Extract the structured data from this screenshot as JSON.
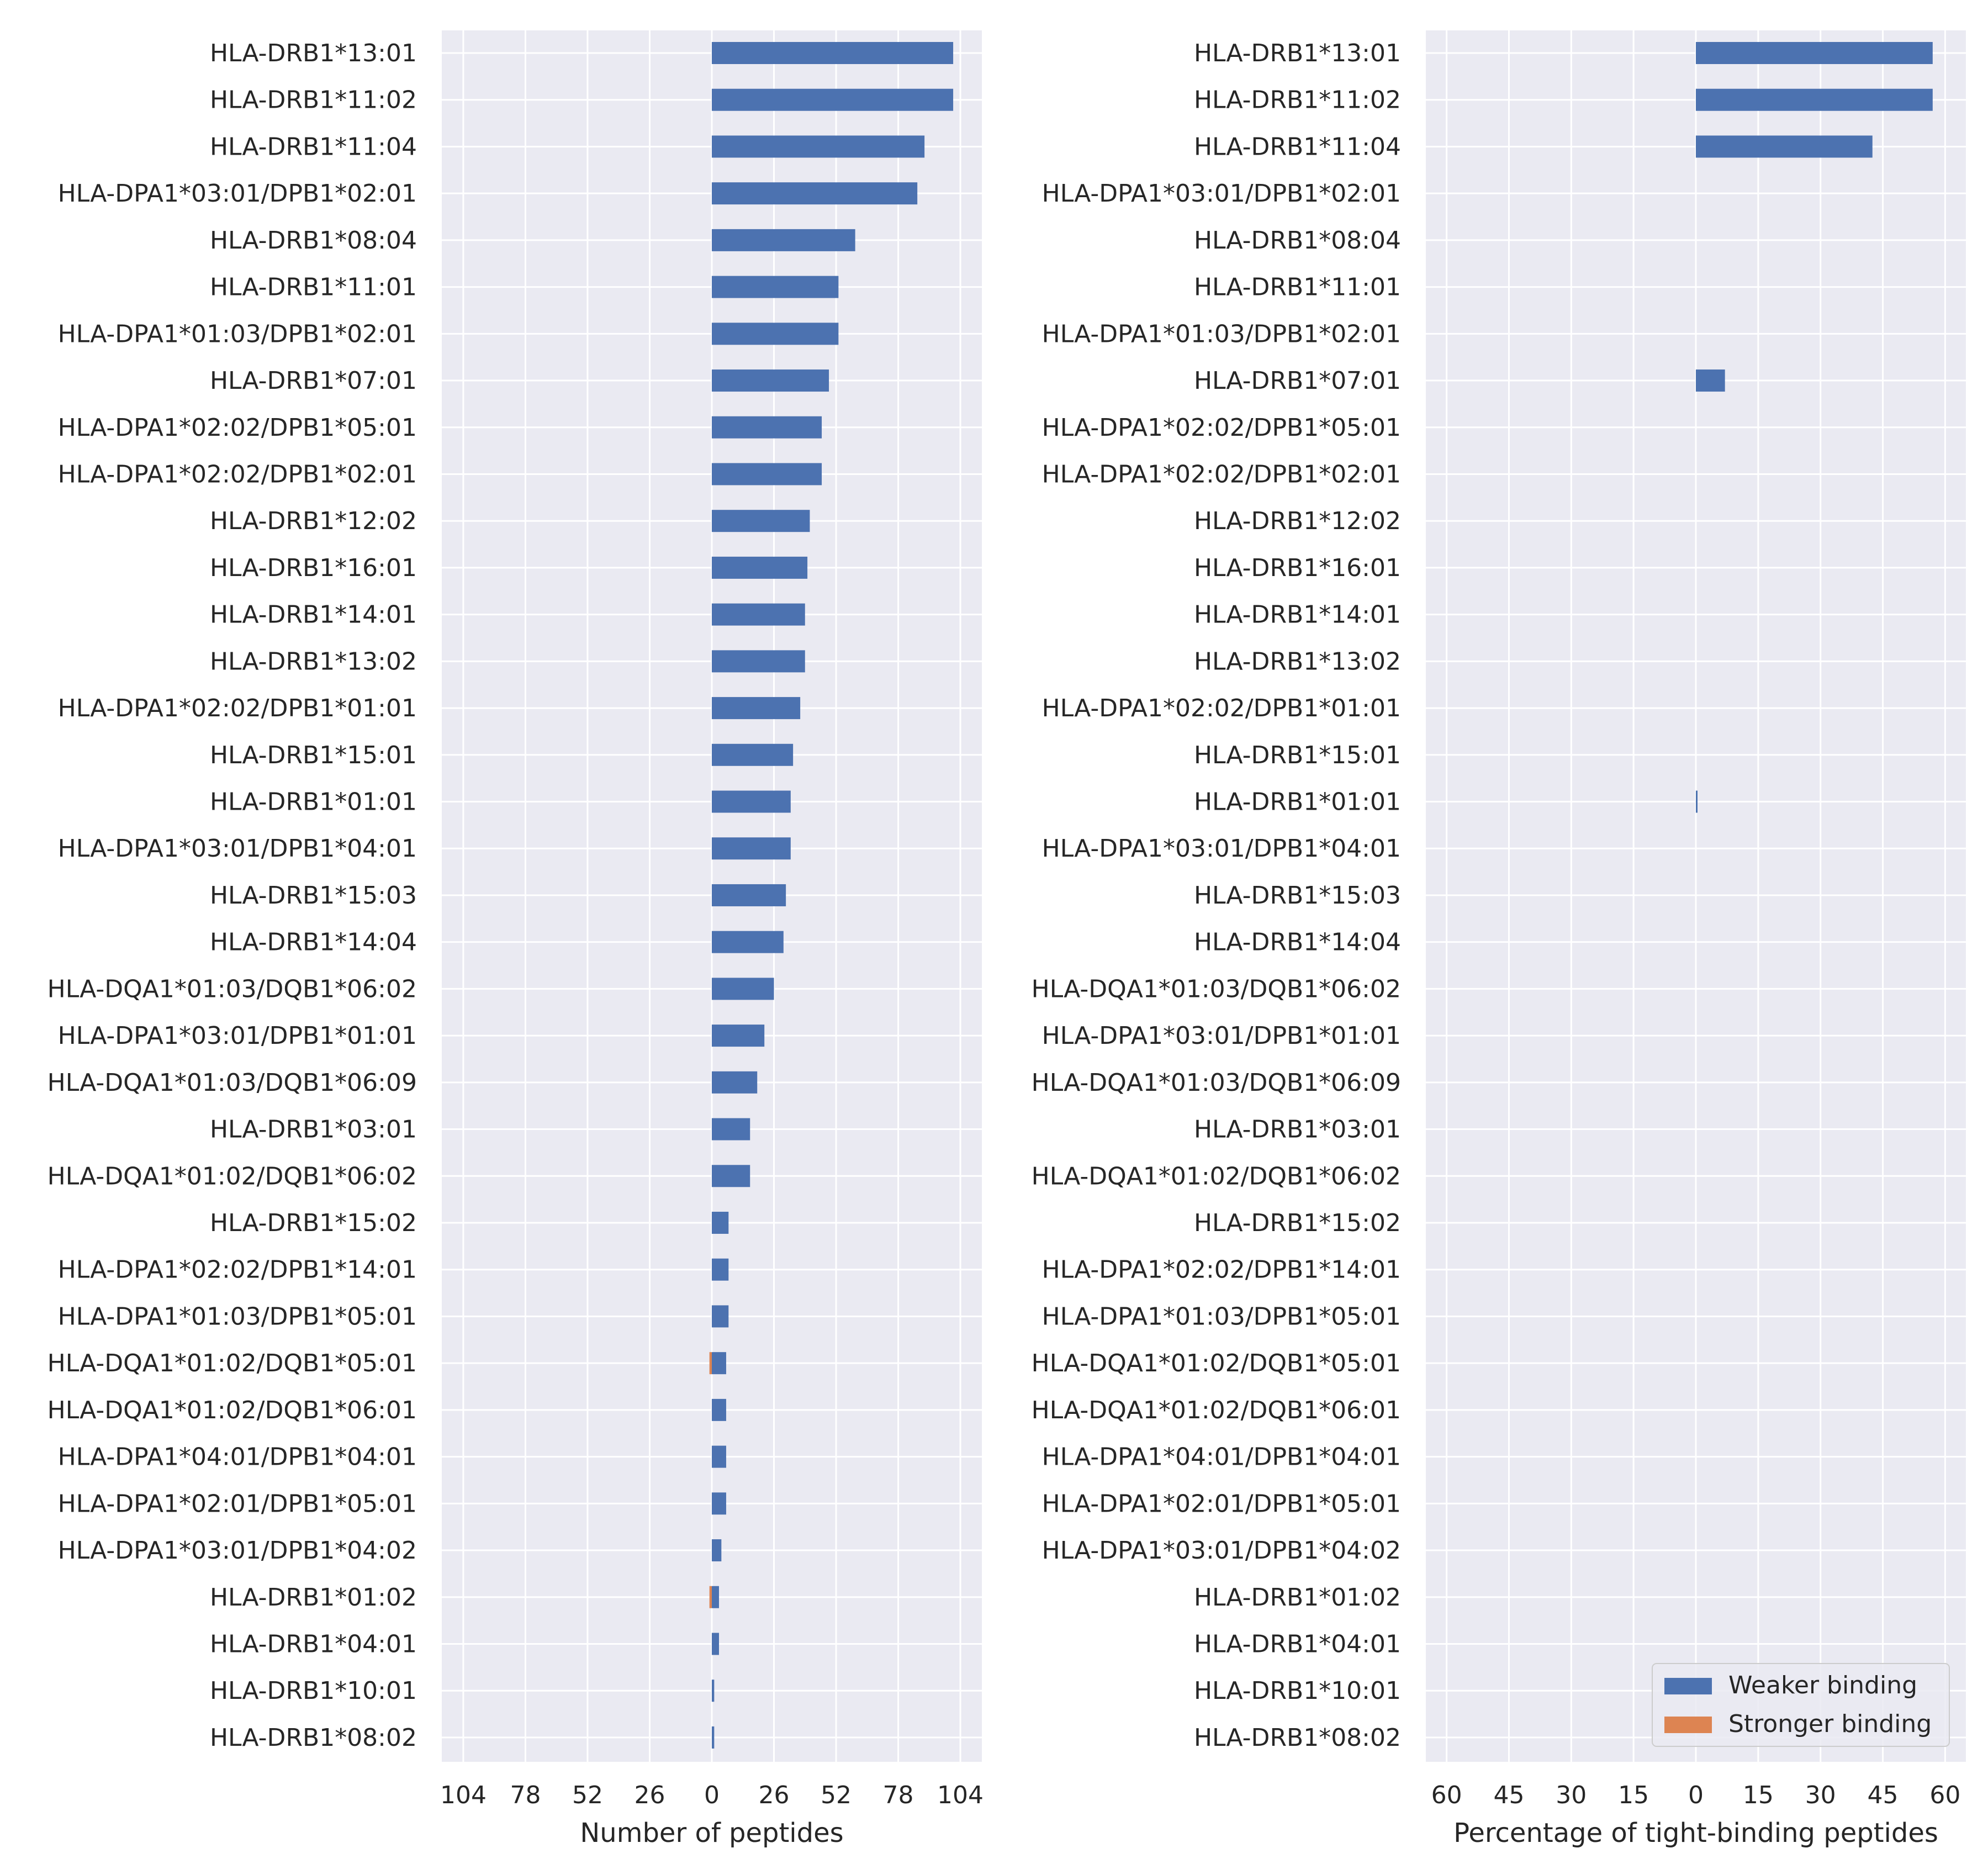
{
  "chart_data": [
    {
      "type": "bar",
      "orientation": "horizontal",
      "layout": "diverging",
      "categories": [
        "HLA-DRB1*13:01",
        "HLA-DRB1*11:02",
        "HLA-DRB1*11:04",
        "HLA-DPA1*03:01/DPB1*02:01",
        "HLA-DRB1*08:04",
        "HLA-DRB1*11:01",
        "HLA-DPA1*01:03/DPB1*02:01",
        "HLA-DRB1*07:01",
        "HLA-DPA1*02:02/DPB1*05:01",
        "HLA-DPA1*02:02/DPB1*02:01",
        "HLA-DRB1*12:02",
        "HLA-DRB1*16:01",
        "HLA-DRB1*14:01",
        "HLA-DRB1*13:02",
        "HLA-DPA1*02:02/DPB1*01:01",
        "HLA-DRB1*15:01",
        "HLA-DRB1*01:01",
        "HLA-DPA1*03:01/DPB1*04:01",
        "HLA-DRB1*15:03",
        "HLA-DRB1*14:04",
        "HLA-DQA1*01:03/DQB1*06:02",
        "HLA-DPA1*03:01/DPB1*01:01",
        "HLA-DQA1*01:03/DQB1*06:09",
        "HLA-DRB1*03:01",
        "HLA-DQA1*01:02/DQB1*06:02",
        "HLA-DRB1*15:02",
        "HLA-DPA1*02:02/DPB1*14:01",
        "HLA-DPA1*01:03/DPB1*05:01",
        "HLA-DQA1*01:02/DQB1*05:01",
        "HLA-DQA1*01:02/DQB1*06:01",
        "HLA-DPA1*04:01/DPB1*04:01",
        "HLA-DPA1*02:01/DPB1*05:01",
        "HLA-DPA1*03:01/DPB1*04:02",
        "HLA-DRB1*01:02",
        "HLA-DRB1*04:01",
        "HLA-DRB1*10:01",
        "HLA-DRB1*08:02"
      ],
      "series": [
        {
          "name": "Weaker binding",
          "color": "#4c72b0",
          "direction": "right",
          "values": [
            101,
            101,
            89,
            86,
            60,
            53,
            53,
            49,
            46,
            46,
            41,
            40,
            39,
            39,
            37,
            34,
            33,
            33,
            31,
            30,
            26,
            22,
            19,
            16,
            16,
            7,
            7,
            7,
            6,
            6,
            6,
            6,
            4,
            3,
            3,
            1,
            1
          ]
        },
        {
          "name": "Stronger binding",
          "color": "#dd8452",
          "direction": "left",
          "values": [
            0,
            0,
            0,
            0,
            0,
            0,
            0,
            0,
            0,
            0,
            0,
            0,
            0,
            0,
            0,
            0,
            0,
            0,
            0,
            0,
            0,
            0,
            0,
            0,
            0,
            0,
            0,
            0,
            1,
            0,
            0,
            0,
            0,
            1,
            0,
            0,
            0
          ]
        }
      ],
      "xlabel": "Number of peptides",
      "xlim": [
        -113,
        113
      ],
      "xticks": [
        -104,
        -78,
        -52,
        -26,
        0,
        26,
        52,
        78,
        104
      ],
      "xtick_labels": [
        "104",
        "78",
        "52",
        "26",
        "0",
        "26",
        "52",
        "78",
        "104"
      ],
      "grid": true
    },
    {
      "type": "bar",
      "orientation": "horizontal",
      "layout": "diverging",
      "categories": [
        "HLA-DRB1*13:01",
        "HLA-DRB1*11:02",
        "HLA-DRB1*11:04",
        "HLA-DPA1*03:01/DPB1*02:01",
        "HLA-DRB1*08:04",
        "HLA-DRB1*11:01",
        "HLA-DPA1*01:03/DPB1*02:01",
        "HLA-DRB1*07:01",
        "HLA-DPA1*02:02/DPB1*05:01",
        "HLA-DPA1*02:02/DPB1*02:01",
        "HLA-DRB1*12:02",
        "HLA-DRB1*16:01",
        "HLA-DRB1*14:01",
        "HLA-DRB1*13:02",
        "HLA-DPA1*02:02/DPB1*01:01",
        "HLA-DRB1*15:01",
        "HLA-DRB1*01:01",
        "HLA-DPA1*03:01/DPB1*04:01",
        "HLA-DRB1*15:03",
        "HLA-DRB1*14:04",
        "HLA-DQA1*01:03/DQB1*06:02",
        "HLA-DPA1*03:01/DPB1*01:01",
        "HLA-DQA1*01:03/DQB1*06:09",
        "HLA-DRB1*03:01",
        "HLA-DQA1*01:02/DQB1*06:02",
        "HLA-DRB1*15:02",
        "HLA-DPA1*02:02/DPB1*14:01",
        "HLA-DPA1*01:03/DPB1*05:01",
        "HLA-DQA1*01:02/DQB1*05:01",
        "HLA-DQA1*01:02/DQB1*06:01",
        "HLA-DPA1*04:01/DPB1*04:01",
        "HLA-DPA1*02:01/DPB1*05:01",
        "HLA-DPA1*03:01/DPB1*04:02",
        "HLA-DRB1*01:02",
        "HLA-DRB1*04:01",
        "HLA-DRB1*10:01",
        "HLA-DRB1*08:02"
      ],
      "series": [
        {
          "name": "Weaker binding",
          "color": "#4c72b0",
          "direction": "right",
          "values": [
            57,
            57,
            42.5,
            0,
            0,
            0,
            0,
            7,
            0,
            0,
            0,
            0,
            0,
            0,
            0,
            0,
            0.3,
            0,
            0,
            0,
            0,
            0,
            0,
            0,
            0,
            0,
            0,
            0,
            0,
            0,
            0,
            0,
            0,
            0,
            0,
            0,
            0
          ]
        },
        {
          "name": "Stronger binding",
          "color": "#dd8452",
          "direction": "left",
          "values": [
            0,
            0,
            0,
            0,
            0,
            0,
            0,
            0,
            0,
            0,
            0,
            0,
            0,
            0,
            0,
            0,
            0,
            0,
            0,
            0,
            0,
            0,
            0,
            0,
            0,
            0,
            0,
            0,
            0,
            0,
            0,
            0,
            0,
            0,
            0,
            0,
            0
          ]
        }
      ],
      "xlabel": "Percentage of tight-binding peptides",
      "xlim": [
        -65,
        65
      ],
      "xticks": [
        -60,
        -45,
        -30,
        -15,
        0,
        15,
        30,
        45,
        60
      ],
      "xtick_labels": [
        "60",
        "45",
        "30",
        "15",
        "0",
        "15",
        "30",
        "45",
        "60"
      ],
      "grid": true,
      "legend": {
        "placement": "lower-right",
        "entries": [
          "Weaker binding",
          "Stronger binding"
        ]
      }
    }
  ],
  "style": {
    "panel_bg": "#eaeaf2",
    "grid_color": "#ffffff"
  }
}
